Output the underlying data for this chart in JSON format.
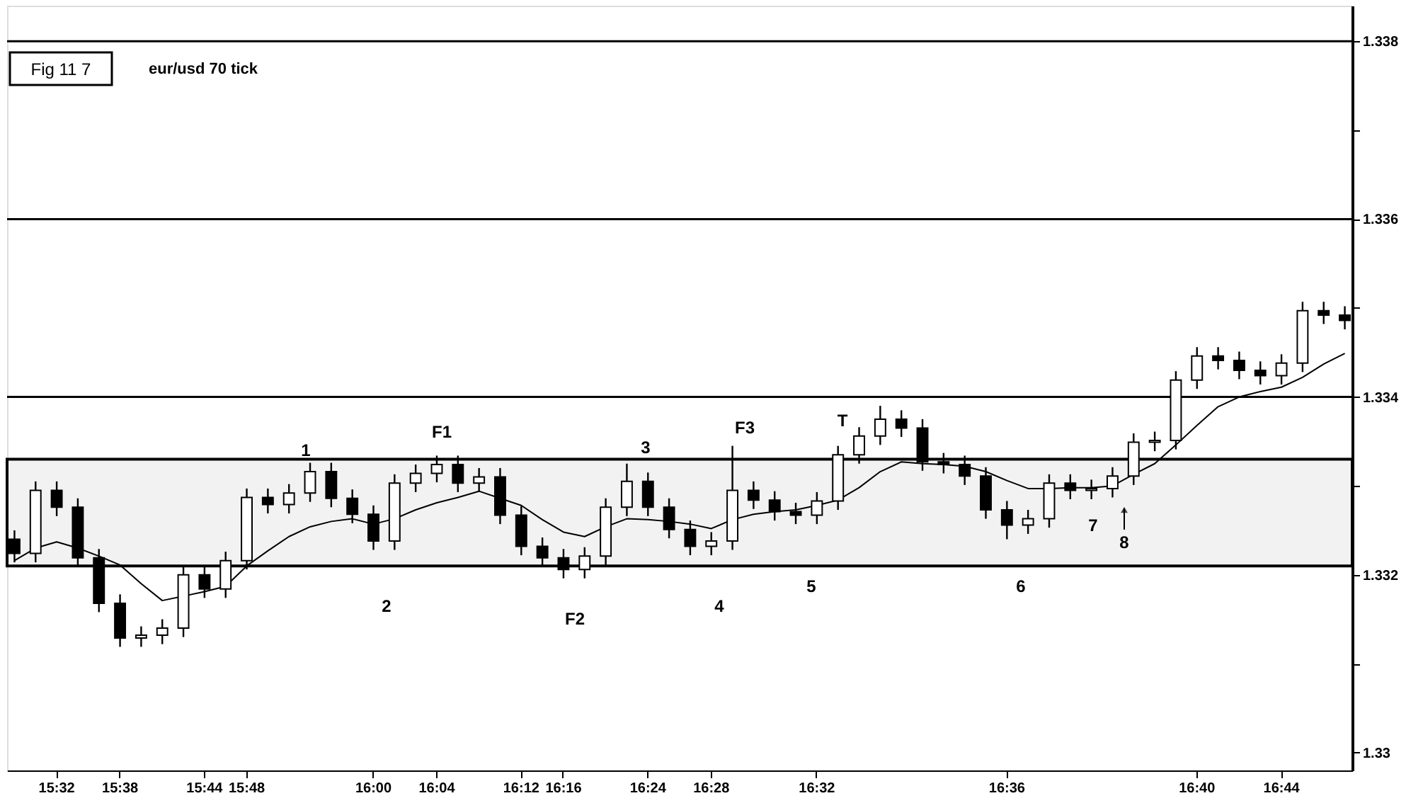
{
  "chart_data": {
    "type": "candlestick",
    "title": "Fig 11 7",
    "subtitle": "eur/usd 70 tick",
    "categories": [
      null,
      null,
      "15:32",
      null,
      null,
      "15:38",
      null,
      null,
      null,
      "15:44",
      null,
      "15:48",
      null,
      null,
      null,
      null,
      null,
      "16:00",
      null,
      null,
      "16:04",
      null,
      null,
      null,
      "16:12",
      null,
      "16:16",
      null,
      null,
      null,
      "16:24",
      null,
      null,
      "16:28",
      null,
      null,
      null,
      null,
      "16:32",
      null,
      null,
      null,
      null,
      null,
      null,
      null,
      null,
      "16:36",
      null,
      null,
      null,
      null,
      null,
      null,
      null,
      null,
      "16:40",
      null,
      null,
      null,
      "16:44",
      null,
      null,
      null
    ],
    "ohlc": [
      [
        1.3324,
        1.3325,
        1.33214,
        1.33224
      ],
      [
        1.33224,
        1.33305,
        1.33214,
        1.33295
      ],
      [
        1.33295,
        1.33305,
        1.33266,
        1.33276
      ],
      [
        1.33276,
        1.33286,
        1.33209,
        1.33219
      ],
      [
        1.33219,
        1.33229,
        1.33158,
        1.33168
      ],
      [
        1.33168,
        1.33178,
        1.33119,
        1.33129
      ],
      [
        1.33129,
        1.33142,
        1.33119,
        1.33132
      ],
      [
        1.33132,
        1.3315,
        1.33122,
        1.3314
      ],
      [
        1.3314,
        1.3321,
        1.3313,
        1.332
      ],
      [
        1.332,
        1.3321,
        1.33174,
        1.33184
      ],
      [
        1.33184,
        1.33226,
        1.33174,
        1.33216
      ],
      [
        1.33216,
        1.33297,
        1.33206,
        1.33287
      ],
      [
        1.33287,
        1.33297,
        1.33269,
        1.33279
      ],
      [
        1.33279,
        1.33302,
        1.33269,
        1.33292
      ],
      [
        1.33292,
        1.33326,
        1.33282,
        1.33316
      ],
      [
        1.33316,
        1.33326,
        1.33276,
        1.33286
      ],
      [
        1.33286,
        1.33296,
        1.33258,
        1.33268
      ],
      [
        1.33268,
        1.33278,
        1.33228,
        1.33238
      ],
      [
        1.33238,
        1.33313,
        1.33228,
        1.33303
      ],
      [
        1.33303,
        1.33324,
        1.33293,
        1.33314
      ],
      [
        1.33314,
        1.33334,
        1.33304,
        1.33324
      ],
      [
        1.33324,
        1.33334,
        1.33293,
        1.33303
      ],
      [
        1.33303,
        1.3332,
        1.33293,
        1.3331
      ],
      [
        1.3331,
        1.3332,
        1.33257,
        1.33267
      ],
      [
        1.33267,
        1.33277,
        1.33222,
        1.33232
      ],
      [
        1.33232,
        1.33242,
        1.33209,
        1.33219
      ],
      [
        1.33219,
        1.33229,
        1.33196,
        1.33206
      ],
      [
        1.33206,
        1.33231,
        1.33196,
        1.33221
      ],
      [
        1.33221,
        1.33286,
        1.33211,
        1.33276
      ],
      [
        1.33276,
        1.33325,
        1.33266,
        1.33305
      ],
      [
        1.33305,
        1.33315,
        1.33266,
        1.33276
      ],
      [
        1.33276,
        1.33286,
        1.33241,
        1.33251
      ],
      [
        1.33251,
        1.33261,
        1.33222,
        1.33232
      ],
      [
        1.33232,
        1.33248,
        1.33222,
        1.33238
      ],
      [
        1.33238,
        1.33345,
        1.33228,
        1.33295
      ],
      [
        1.33295,
        1.33305,
        1.33274,
        1.33284
      ],
      [
        1.33284,
        1.33294,
        1.33261,
        1.33271
      ],
      [
        1.33271,
        1.33281,
        1.33257,
        1.33267
      ],
      [
        1.33267,
        1.33293,
        1.33257,
        1.33283
      ],
      [
        1.33283,
        1.33345,
        1.33273,
        1.33335
      ],
      [
        1.33335,
        1.33366,
        1.33325,
        1.33356
      ],
      [
        1.33356,
        1.3339,
        1.33346,
        1.33375
      ],
      [
        1.33375,
        1.33385,
        1.33355,
        1.33365
      ],
      [
        1.33365,
        1.33375,
        1.33317,
        1.33327
      ],
      [
        1.33327,
        1.33337,
        1.33314,
        1.33324
      ],
      [
        1.33324,
        1.33334,
        1.33301,
        1.33311
      ],
      [
        1.33311,
        1.33321,
        1.33263,
        1.33273
      ],
      [
        1.33273,
        1.33283,
        1.3324,
        1.33256
      ],
      [
        1.33256,
        1.33273,
        1.33246,
        1.33263
      ],
      [
        1.33263,
        1.33313,
        1.33253,
        1.33303
      ],
      [
        1.33303,
        1.33313,
        1.33285,
        1.33295
      ],
      [
        1.33295,
        1.33307,
        1.33285,
        1.33297
      ],
      [
        1.33297,
        1.33321,
        1.33287,
        1.33311
      ],
      [
        1.33311,
        1.33359,
        1.33301,
        1.33349
      ],
      [
        1.33349,
        1.33361,
        1.33339,
        1.33351
      ],
      [
        1.33351,
        1.33429,
        1.33341,
        1.33419
      ],
      [
        1.33419,
        1.33456,
        1.33409,
        1.33446
      ],
      [
        1.33446,
        1.33456,
        1.33431,
        1.33441
      ],
      [
        1.33441,
        1.33451,
        1.3342,
        1.3343
      ],
      [
        1.3343,
        1.3344,
        1.33414,
        1.33424
      ],
      [
        1.33424,
        1.33448,
        1.33414,
        1.33438
      ],
      [
        1.33438,
        1.33507,
        1.33428,
        1.33497
      ],
      [
        1.33497,
        1.33507,
        1.33482,
        1.33492
      ],
      [
        1.33492,
        1.33502,
        1.33476,
        1.33486
      ]
    ],
    "series": [
      {
        "type": "line",
        "color": "#000000",
        "values": [
          1.33216,
          1.3323,
          1.33237,
          1.3323,
          1.33221,
          1.33211,
          1.3319,
          1.33171,
          1.33176,
          1.33181,
          1.33187,
          1.3321,
          1.33227,
          1.33243,
          1.33254,
          1.3326,
          1.33263,
          1.33257,
          1.33263,
          1.33273,
          1.33281,
          1.33287,
          1.33294,
          1.33286,
          1.33278,
          1.33262,
          1.33248,
          1.33243,
          1.33254,
          1.33263,
          1.33262,
          1.3326,
          1.33257,
          1.33252,
          1.33262,
          1.33268,
          1.33271,
          1.33273,
          1.33278,
          1.33284,
          1.33298,
          1.33316,
          1.33327,
          1.33325,
          1.33324,
          1.33322,
          1.33316,
          1.33306,
          1.33297,
          1.33297,
          1.33298,
          1.33298,
          1.333,
          1.33313,
          1.33325,
          1.33346,
          1.33368,
          1.33389,
          1.334,
          1.33406,
          1.33411,
          1.33422,
          1.33437,
          1.33449
        ]
      }
    ],
    "ylim": [
      1.3298,
      1.3384
    ],
    "yticks": [
      1.33,
      {
        "value": 1.331,
        "label": null
      },
      1.332,
      {
        "value": 1.333,
        "label": null
      },
      1.334,
      {
        "value": 1.335,
        "label": null
      },
      1.336,
      {
        "value": 1.337,
        "label": null
      },
      1.338
    ],
    "ref_lines": [
      {
        "axis": "y",
        "value": 1.338,
        "color": "#000000"
      },
      {
        "axis": "y",
        "value": 1.336,
        "color": "#000000"
      },
      {
        "axis": "y",
        "value": 1.334,
        "color": "#000000"
      }
    ],
    "bands": [
      {
        "axis": "y",
        "from": 1.3321,
        "to": 1.3333,
        "color": "#000000"
      }
    ],
    "annotations": [
      "1",
      "F1",
      "3",
      "F3",
      "T",
      "2",
      "F2",
      "4",
      "5",
      "6",
      "7",
      "8"
    ],
    "grid": false
  }
}
